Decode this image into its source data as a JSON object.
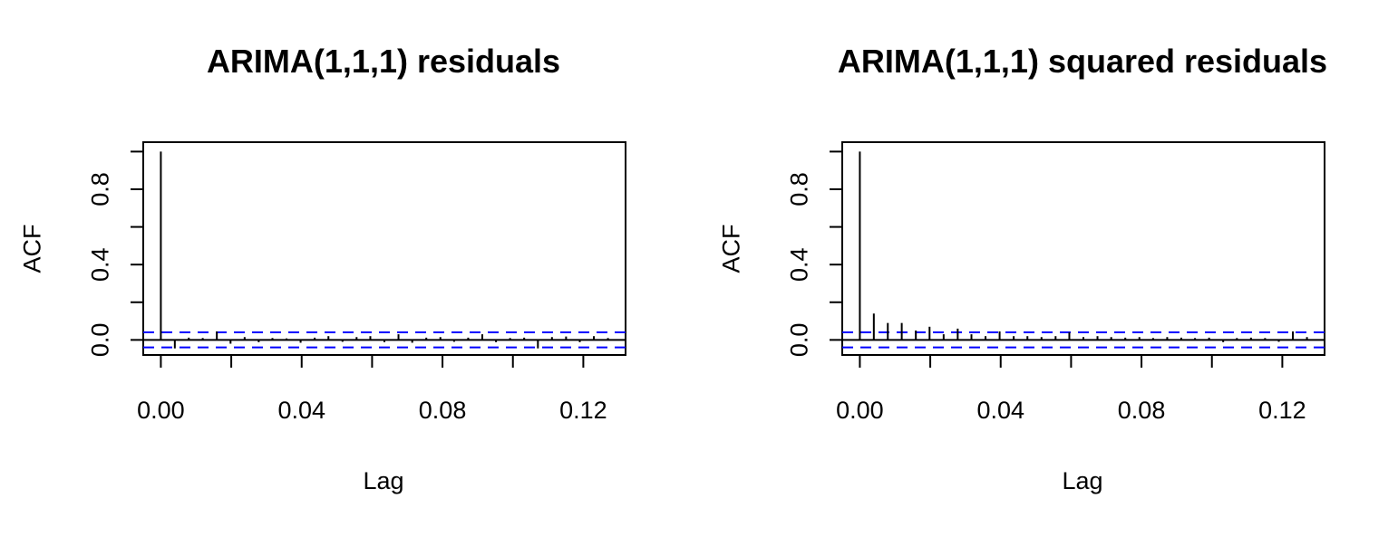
{
  "chart_data": [
    {
      "type": "bar",
      "title": "ARIMA(1,1,1) residuals",
      "xlabel": "Lag",
      "ylabel": "ACF",
      "xlim": [
        -0.005,
        0.132
      ],
      "ylim": [
        -0.08,
        1.05
      ],
      "xticks": [
        0.0,
        0.04,
        0.08,
        0.12
      ],
      "xtick_labels": [
        "0.00",
        "0.04",
        "0.08",
        "0.12"
      ],
      "yticks": [
        0.0,
        0.2,
        0.4,
        0.6,
        0.8,
        1.0
      ],
      "ytick_labels": [
        "0.0",
        "0.4",
        "0.8"
      ],
      "yticks_labeled": [
        0.0,
        0.4,
        0.8
      ],
      "confidence_band": [
        0.04,
        -0.04
      ],
      "band_color": "#0000ff",
      "lags": [
        0,
        0.00397,
        0.00794,
        0.0119,
        0.0159,
        0.0198,
        0.0238,
        0.0278,
        0.0317,
        0.0357,
        0.0397,
        0.0437,
        0.0476,
        0.0516,
        0.0556,
        0.0595,
        0.0635,
        0.0675,
        0.0714,
        0.0754,
        0.0794,
        0.0833,
        0.0873,
        0.0913,
        0.0952,
        0.0992,
        0.1032,
        0.1071,
        0.1111,
        0.1151,
        0.119,
        0.123,
        0.127
      ],
      "values": [
        1.0,
        -0.045,
        0.012,
        0.01,
        0.045,
        -0.02,
        0.015,
        -0.012,
        0.01,
        0.008,
        -0.015,
        0.012,
        0.02,
        -0.01,
        0.015,
        0.02,
        -0.012,
        0.03,
        -0.015,
        0.012,
        0.015,
        -0.01,
        0.012,
        0.03,
        -0.012,
        0.01,
        0.012,
        -0.045,
        0.015,
        0.018,
        -0.012,
        0.02,
        0.01
      ]
    },
    {
      "type": "bar",
      "title": "ARIMA(1,1,1) squared residuals",
      "xlabel": "Lag",
      "ylabel": "ACF",
      "xlim": [
        -0.005,
        0.132
      ],
      "ylim": [
        -0.08,
        1.05
      ],
      "xticks": [
        0.0,
        0.04,
        0.08,
        0.12
      ],
      "xtick_labels": [
        "0.00",
        "0.04",
        "0.08",
        "0.12"
      ],
      "yticks": [
        0.0,
        0.2,
        0.4,
        0.6,
        0.8,
        1.0
      ],
      "ytick_labels": [
        "0.0",
        "0.4",
        "0.8"
      ],
      "yticks_labeled": [
        0.0,
        0.4,
        0.8
      ],
      "confidence_band": [
        0.04,
        -0.04
      ],
      "band_color": "#0000ff",
      "lags": [
        0,
        0.00397,
        0.00794,
        0.0119,
        0.0159,
        0.0198,
        0.0238,
        0.0278,
        0.0317,
        0.0357,
        0.0397,
        0.0437,
        0.0476,
        0.0516,
        0.0556,
        0.0595,
        0.0635,
        0.0675,
        0.0714,
        0.0754,
        0.0794,
        0.0833,
        0.0873,
        0.0913,
        0.0952,
        0.0992,
        0.1032,
        0.1071,
        0.1111,
        0.1151,
        0.119,
        0.123,
        0.127
      ],
      "values": [
        1.0,
        0.14,
        0.09,
        0.09,
        0.05,
        0.07,
        0.03,
        0.06,
        0.03,
        0.02,
        0.045,
        0.02,
        0.02,
        0.015,
        0.02,
        0.04,
        0.015,
        0.02,
        0.015,
        0.012,
        0.015,
        0.01,
        0.015,
        0.012,
        0.01,
        0.012,
        -0.012,
        0.01,
        0.012,
        0.01,
        -0.01,
        0.045,
        0.015
      ]
    }
  ]
}
